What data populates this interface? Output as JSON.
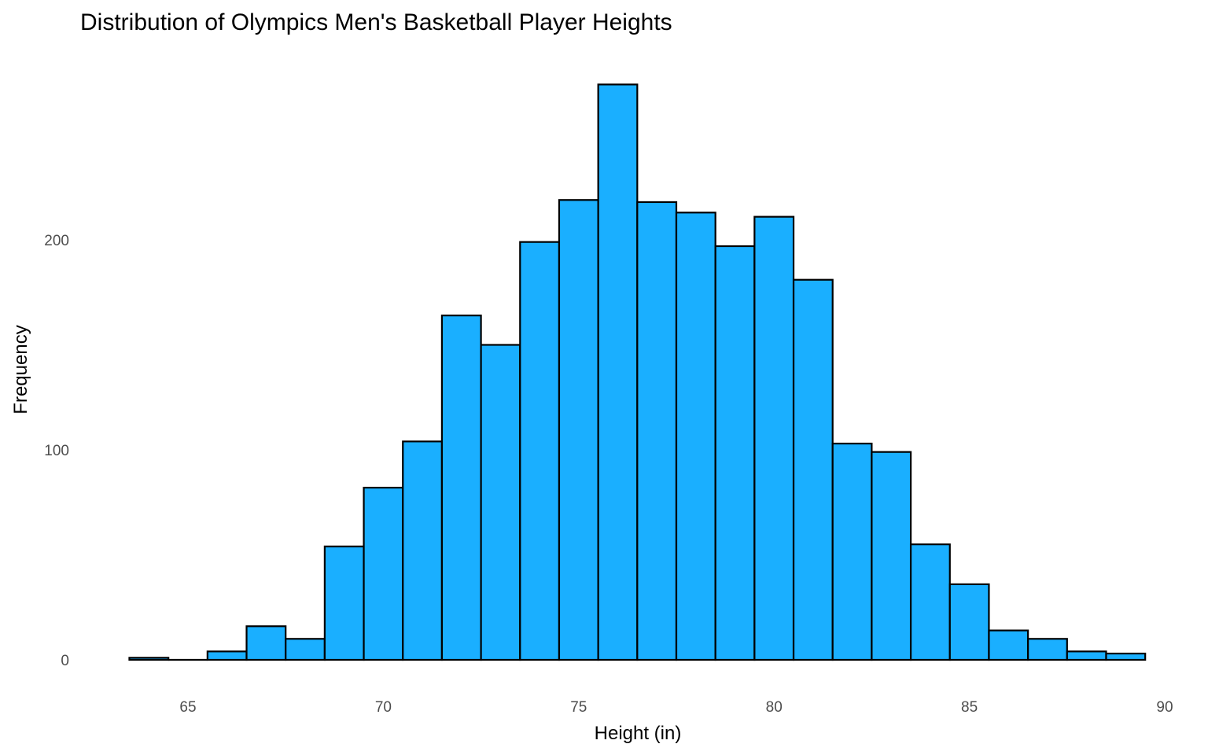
{
  "chart_data": {
    "type": "bar",
    "title": "Distribution of Olympics Men's Basketball Player Heights",
    "xlabel": "Height (in)",
    "ylabel": "Frequency",
    "bin_width": 1,
    "bin_centers": [
      64,
      65,
      66,
      67,
      68,
      69,
      70,
      71,
      72,
      73,
      74,
      75,
      76,
      77,
      78,
      79,
      80,
      81,
      82,
      83,
      84,
      85,
      86,
      87,
      88,
      89
    ],
    "values": [
      1,
      0,
      4,
      16,
      10,
      54,
      82,
      104,
      164,
      150,
      199,
      219,
      274,
      218,
      213,
      197,
      211,
      181,
      103,
      99,
      55,
      36,
      14,
      10,
      4,
      3
    ],
    "xlim": [
      63.5,
      90
    ],
    "ylim": [
      0,
      280
    ],
    "x_ticks": [
      65,
      70,
      75,
      80,
      85,
      90
    ],
    "y_ticks": [
      0,
      100,
      200
    ],
    "grid": false,
    "bar_fill": "#1AAFFF",
    "bar_stroke": "#000000"
  }
}
